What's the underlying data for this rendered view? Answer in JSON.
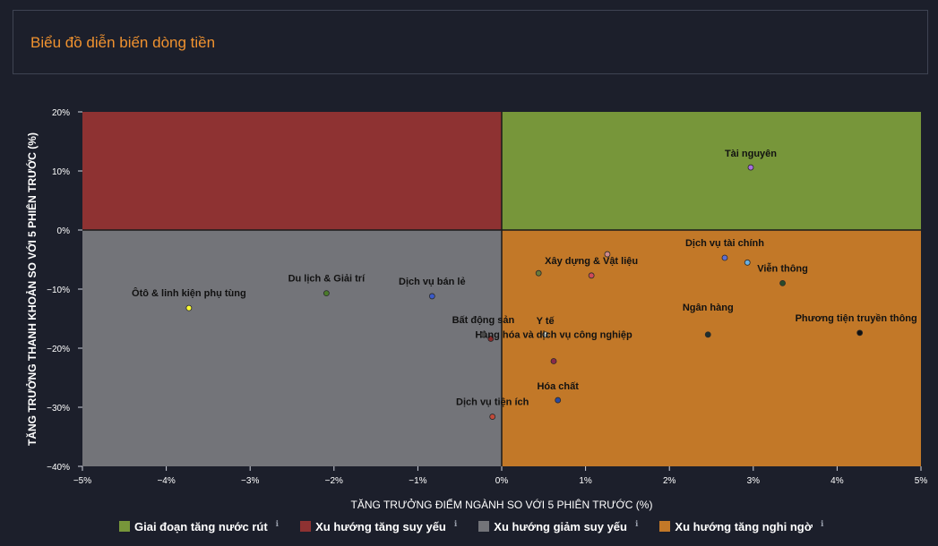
{
  "header": {
    "title": "Biểu đồ diễn biến dòng tiền"
  },
  "chart_data": {
    "type": "scatter",
    "xlabel": "TĂNG TRƯỞNG ĐIỂM NGÀNH SO VỚI 5 PHIÊN TRƯỚC (%)",
    "ylabel": "TĂNG TRƯỞNG THANH KHOẢN SO VỚI 5 PHIÊN TRƯỚC (%)",
    "xlim": [
      -5,
      5
    ],
    "ylim": [
      -40,
      20
    ],
    "xticks": [
      -5,
      -4,
      -3,
      -2,
      -1,
      0,
      1,
      2,
      3,
      4,
      5
    ],
    "xtick_labels": [
      "−5%",
      "−4%",
      "−3%",
      "−2%",
      "−1%",
      "0%",
      "1%",
      "2%",
      "3%",
      "4%",
      "5%"
    ],
    "yticks": [
      20,
      10,
      0,
      -10,
      -20,
      -30,
      -40
    ],
    "ytick_labels": [
      "20%",
      "10%",
      "0%",
      "−10%",
      "−20%",
      "−30%",
      "−40%"
    ],
    "quadrants": [
      {
        "label": "Giai đoạn tăng nước rút",
        "color": "#77963a",
        "x": [
          0,
          5
        ],
        "y": [
          0,
          20
        ]
      },
      {
        "label": "Xu hướng tăng suy yếu",
        "color": "#8e3232",
        "x": [
          -5,
          0
        ],
        "y": [
          0,
          20
        ]
      },
      {
        "label": "Xu hướng giảm suy yếu",
        "color": "#737479",
        "x": [
          -5,
          0
        ],
        "y": [
          -40,
          0
        ]
      },
      {
        "label": "Xu hướng tăng nghi ngờ",
        "color": "#c27828",
        "x": [
          0,
          5
        ],
        "y": [
          -40,
          0
        ]
      }
    ],
    "points": [
      {
        "name": "Tài nguyên",
        "x": 2.97,
        "y": 10.6,
        "color": "#a86ee0"
      },
      {
        "name": "Dịch vụ tài chính",
        "x": 2.66,
        "y": -4.7,
        "color": "#5f6fd2"
      },
      {
        "name": "Viễn thông",
        "x": 3.35,
        "y": -9.0,
        "color": "#284a2a"
      },
      {
        "name": "Xây dựng & Vật liệu",
        "x": 1.07,
        "y": -7.7,
        "color": "#d04a5a"
      },
      {
        "name": "Phương tiện truyền thông",
        "x": 4.27,
        "y": -17.4,
        "color": "#111111"
      },
      {
        "name": "Ngân hàng",
        "x": 2.46,
        "y": -17.7,
        "color": "#1f2f2f"
      },
      {
        "name": "Y tế",
        "x": 0.52,
        "y": -17.7,
        "color": "#eef2e4"
      },
      {
        "name": "Hàng hóa và dịch vụ công nghiệp",
        "x": 0.62,
        "y": -22.2,
        "color": "#8a2a4a"
      },
      {
        "name": "Hóa chất",
        "x": 0.67,
        "y": -28.8,
        "color": "#2a4aa0"
      },
      {
        "name": "Bất động sản",
        "x": -0.22,
        "y": -17.7,
        "color": "#4a4a4a"
      },
      {
        "name": "Dịch vụ tiện ích",
        "x": -0.11,
        "y": -31.6,
        "color": "#c24a3a"
      },
      {
        "name": "Du lịch & Giải trí",
        "x": -2.09,
        "y": -10.7,
        "color": "#4a7a2a"
      },
      {
        "name": "Dịch vụ bán lẻ",
        "x": -0.83,
        "y": -11.2,
        "color": "#3a5ac8"
      },
      {
        "name": "Ôtô & linh kiện phụ tùng",
        "x": -3.73,
        "y": -13.2,
        "color": "#ffff33"
      }
    ],
    "extra_points": [
      {
        "x": 0.44,
        "y": -7.3,
        "color": "#6a7a3a"
      },
      {
        "x": 1.26,
        "y": -4.1,
        "color": "#d08a8a"
      },
      {
        "x": 2.93,
        "y": -5.5,
        "color": "#6ab0e0"
      },
      {
        "x": -0.13,
        "y": -18.4,
        "color": "#8a2a2a"
      }
    ],
    "legend": [
      {
        "label": "Giai đoạn tăng nước rút",
        "color": "#77963a",
        "icon": "info-icon"
      },
      {
        "label": "Xu hướng tăng suy yếu",
        "color": "#8e3232",
        "icon": "info-icon"
      },
      {
        "label": "Xu hướng giảm suy yếu",
        "color": "#737479",
        "icon": "info-icon"
      },
      {
        "label": "Xu hướng tăng nghi ngờ",
        "color": "#c27828",
        "icon": "info-icon"
      }
    ]
  }
}
